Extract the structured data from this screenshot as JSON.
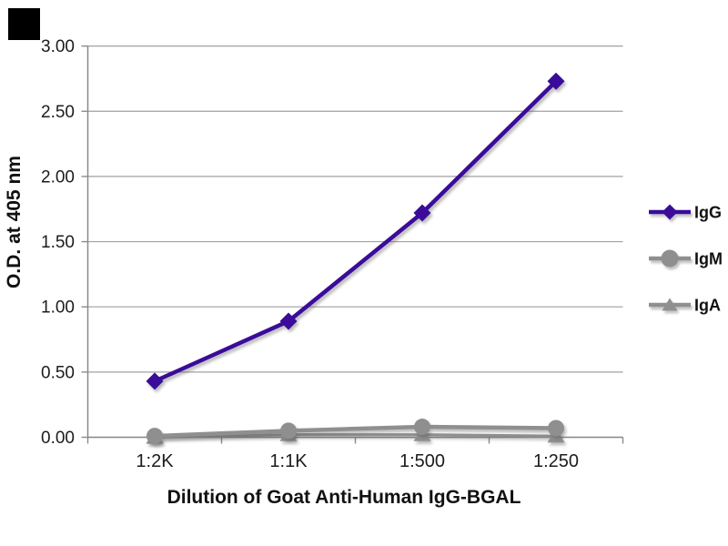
{
  "watermark": {
    "corner_square_color": "#000000"
  },
  "chart_data": {
    "type": "line",
    "title": "",
    "xlabel": "Dilution of Goat Anti-Human IgG-BGAL",
    "ylabel": "O.D. at 405 nm",
    "categories": [
      "1:2K",
      "1:1K",
      "1:500",
      "1:250"
    ],
    "y_ticks": [
      "3.00",
      "2.50",
      "2.00",
      "1.50",
      "1.00",
      "0.50",
      "0.00"
    ],
    "y_tick_values": [
      3.0,
      2.5,
      2.0,
      1.5,
      1.0,
      0.5,
      0.0
    ],
    "ylim": [
      0,
      3
    ],
    "grid": "horizontal",
    "legend_position": "right",
    "colors": {
      "gridline": "#a1a1a1",
      "axis": "#8a8a8a",
      "tick_text": "#1c1c1c",
      "title_text": "#111111"
    },
    "series": [
      {
        "name": "IgG",
        "marker": "diamond",
        "color": "#3A0C99",
        "line_width": 4.5,
        "values": [
          0.43,
          0.89,
          1.72,
          2.73
        ]
      },
      {
        "name": "IgM",
        "marker": "circle",
        "color": "#8F8F8F",
        "line_width": 4.5,
        "values": [
          0.01,
          0.05,
          0.08,
          0.07
        ]
      },
      {
        "name": "IgA",
        "marker": "triangle",
        "color": "#8F8F8F",
        "line_width": 3.0,
        "values": [
          0.0,
          0.02,
          0.02,
          0.01
        ]
      }
    ]
  }
}
